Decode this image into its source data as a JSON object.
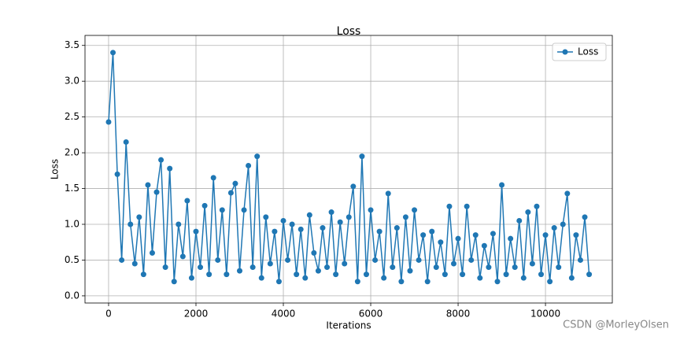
{
  "chart_data": {
    "type": "line",
    "title": "Loss",
    "x_label": "Iterations",
    "y_label": "Loss",
    "x": [
      0,
      100,
      200,
      300,
      400,
      500,
      600,
      700,
      800,
      900,
      1000,
      1100,
      1200,
      1300,
      1400,
      1500,
      1600,
      1700,
      1800,
      1900,
      2000,
      2100,
      2200,
      2300,
      2400,
      2500,
      2600,
      2700,
      2800,
      2900,
      3000,
      3100,
      3200,
      3300,
      3400,
      3500,
      3600,
      3700,
      3800,
      3900,
      4000,
      4100,
      4200,
      4300,
      4400,
      4500,
      4600,
      4700,
      4800,
      4900,
      5000,
      5100,
      5200,
      5300,
      5400,
      5500,
      5600,
      5700,
      5800,
      5900,
      6000,
      6100,
      6200,
      6300,
      6400,
      6500,
      6600,
      6700,
      6800,
      6900,
      7000,
      7100,
      7200,
      7300,
      7400,
      7500,
      7600,
      7700,
      7800,
      7900,
      8000,
      8100,
      8200,
      8300,
      8400,
      8500,
      8600,
      8700,
      8800,
      8900,
      9000,
      9100,
      9200,
      9300,
      9400,
      9500,
      9600,
      9700,
      9800,
      9900,
      10000,
      10100,
      10200,
      10300,
      10400,
      10500,
      10600,
      10700,
      10800,
      10900,
      11000
    ],
    "series": [
      {
        "name": "Loss",
        "color": "#1f77b4",
        "values": [
          2.43,
          3.4,
          1.7,
          0.5,
          2.15,
          1.0,
          0.45,
          1.1,
          0.3,
          1.55,
          0.6,
          1.45,
          1.9,
          0.4,
          1.78,
          0.2,
          1.0,
          0.55,
          1.33,
          0.25,
          0.9,
          0.4,
          1.26,
          0.3,
          1.65,
          0.5,
          1.2,
          0.3,
          1.44,
          1.57,
          0.35,
          1.2,
          1.82,
          0.4,
          1.95,
          0.25,
          1.1,
          0.45,
          0.9,
          0.2,
          1.05,
          0.5,
          1.0,
          0.3,
          0.93,
          0.25,
          1.13,
          0.6,
          0.35,
          0.95,
          0.4,
          1.17,
          0.3,
          1.03,
          0.45,
          1.1,
          1.53,
          0.2,
          1.95,
          0.3,
          1.2,
          0.5,
          0.9,
          0.25,
          1.43,
          0.4,
          0.95,
          0.2,
          1.1,
          0.35,
          1.2,
          0.5,
          0.85,
          0.2,
          0.9,
          0.4,
          0.75,
          0.3,
          1.25,
          0.45,
          0.8,
          0.3,
          1.25,
          0.5,
          0.85,
          0.25,
          0.7,
          0.4,
          0.87,
          0.2,
          1.55,
          0.3,
          0.8,
          0.4,
          1.05,
          0.25,
          1.17,
          0.45,
          1.25,
          0.3,
          0.85,
          0.2,
          0.95,
          0.4,
          1.0,
          1.43,
          0.25,
          0.85,
          0.5,
          1.1,
          0.3
        ]
      }
    ],
    "xlim": [
      -540,
      11530
    ],
    "ylim": [
      -0.1,
      3.64
    ],
    "xticks": [
      0,
      2000,
      4000,
      6000,
      8000,
      10000
    ],
    "yticks": [
      {
        "value": 0,
        "label": "0.0"
      },
      0.5,
      {
        "value": 1,
        "label": "1.0"
      },
      1.5,
      {
        "value": 2,
        "label": "2.0"
      },
      2.5,
      {
        "value": 3,
        "label": "3.0"
      },
      3.5
    ],
    "grid": true,
    "legend": "upper right",
    "watermark": "CSDN @MorleyOlsen"
  }
}
